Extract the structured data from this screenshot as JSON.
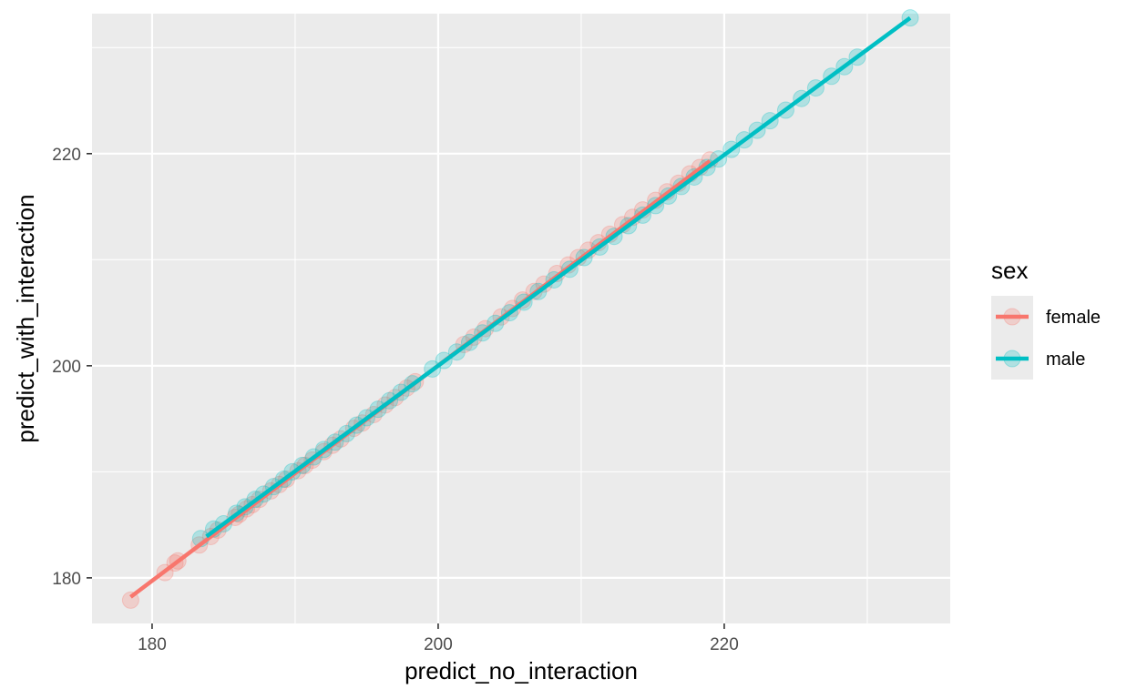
{
  "chart_data": {
    "type": "scatter",
    "xlabel": "predict_no_interaction",
    "ylabel": "predict_with_interaction",
    "xlim": [
      175.8,
      235.8
    ],
    "ylim": [
      175.7,
      233.2
    ],
    "x_ticks": [
      180,
      200,
      220
    ],
    "y_ticks": [
      180,
      200,
      220
    ],
    "x_tick_labels": [
      "180",
      "200",
      "220"
    ],
    "y_tick_labels": [
      "180",
      "200",
      "220"
    ],
    "grid": true,
    "legend": {
      "title": "sex",
      "placement": "right"
    },
    "series": [
      {
        "name": "female",
        "color": "#F8766D",
        "fit_line": {
          "x": [
            178.5,
            219.0
          ],
          "y": [
            178.2,
            219.3
          ]
        },
        "points": [
          [
            178.5,
            177.9
          ],
          [
            180.9,
            180.5
          ],
          [
            181.6,
            181.4
          ],
          [
            181.8,
            181.6
          ],
          [
            183.3,
            183.1
          ],
          [
            184.1,
            183.9
          ],
          [
            184.6,
            184.5
          ],
          [
            185.8,
            185.7
          ],
          [
            186.1,
            186.0
          ],
          [
            186.6,
            186.5
          ],
          [
            187.0,
            186.9
          ],
          [
            187.5,
            187.4
          ],
          [
            188.3,
            188.2
          ],
          [
            188.9,
            188.8
          ],
          [
            189.4,
            189.3
          ],
          [
            190.2,
            190.1
          ],
          [
            190.7,
            190.6
          ],
          [
            191.2,
            191.1
          ],
          [
            192.0,
            191.9
          ],
          [
            192.6,
            192.5
          ],
          [
            193.2,
            193.1
          ],
          [
            194.1,
            194.1
          ],
          [
            194.7,
            194.6
          ],
          [
            195.5,
            195.4
          ],
          [
            196.3,
            196.3
          ],
          [
            197.0,
            197.0
          ],
          [
            197.8,
            197.9
          ],
          [
            198.4,
            198.5
          ],
          [
            201.8,
            202.0
          ],
          [
            202.5,
            202.7
          ],
          [
            203.3,
            203.5
          ],
          [
            204.4,
            204.6
          ],
          [
            205.2,
            205.4
          ],
          [
            205.9,
            206.2
          ],
          [
            206.7,
            207.0
          ],
          [
            207.4,
            207.7
          ],
          [
            208.3,
            208.7
          ],
          [
            209.1,
            209.5
          ],
          [
            209.8,
            210.2
          ],
          [
            210.5,
            210.9
          ],
          [
            211.2,
            211.6
          ],
          [
            212.0,
            212.4
          ],
          [
            212.9,
            213.3
          ],
          [
            213.6,
            214.0
          ],
          [
            214.3,
            214.7
          ],
          [
            215.2,
            215.6
          ],
          [
            216.0,
            216.4
          ],
          [
            216.8,
            217.2
          ],
          [
            217.6,
            218.1
          ],
          [
            218.3,
            218.7
          ],
          [
            219.0,
            219.4
          ]
        ]
      },
      {
        "name": "male",
        "color": "#00BFC4",
        "fit_line": {
          "x": [
            183.8,
            233.0
          ],
          "y": [
            183.9,
            232.8
          ]
        },
        "points": [
          [
            183.4,
            183.7
          ],
          [
            184.3,
            184.6
          ],
          [
            185.0,
            185.1
          ],
          [
            185.9,
            186.1
          ],
          [
            186.5,
            186.7
          ],
          [
            187.2,
            187.4
          ],
          [
            187.8,
            187.9
          ],
          [
            188.5,
            188.6
          ],
          [
            189.2,
            189.3
          ],
          [
            189.8,
            190.0
          ],
          [
            190.5,
            190.6
          ],
          [
            191.3,
            191.4
          ],
          [
            192.0,
            192.1
          ],
          [
            192.8,
            192.8
          ],
          [
            193.6,
            193.6
          ],
          [
            194.3,
            194.4
          ],
          [
            195.0,
            195.1
          ],
          [
            195.8,
            195.9
          ],
          [
            196.6,
            196.7
          ],
          [
            197.4,
            197.5
          ],
          [
            198.2,
            198.3
          ],
          [
            199.6,
            199.7
          ],
          [
            200.4,
            200.5
          ],
          [
            201.3,
            201.3
          ],
          [
            202.2,
            202.2
          ],
          [
            203.1,
            203.1
          ],
          [
            204.0,
            204.0
          ],
          [
            205.0,
            205.0
          ],
          [
            206.0,
            206.0
          ],
          [
            207.0,
            207.0
          ],
          [
            208.1,
            208.1
          ],
          [
            209.2,
            209.1
          ],
          [
            210.2,
            210.2
          ],
          [
            211.3,
            211.2
          ],
          [
            212.3,
            212.2
          ],
          [
            213.3,
            213.2
          ],
          [
            214.3,
            214.2
          ],
          [
            215.2,
            215.1
          ],
          [
            216.1,
            216.0
          ],
          [
            217.0,
            216.9
          ],
          [
            217.9,
            217.8
          ],
          [
            218.8,
            218.7
          ],
          [
            219.6,
            219.5
          ],
          [
            220.5,
            220.4
          ],
          [
            221.4,
            221.3
          ],
          [
            222.3,
            222.2
          ],
          [
            223.2,
            223.1
          ],
          [
            224.3,
            224.1
          ],
          [
            225.4,
            225.2
          ],
          [
            226.4,
            226.2
          ],
          [
            227.5,
            227.3
          ],
          [
            228.4,
            228.2
          ],
          [
            229.3,
            229.1
          ],
          [
            233.0,
            232.8
          ]
        ]
      }
    ]
  }
}
